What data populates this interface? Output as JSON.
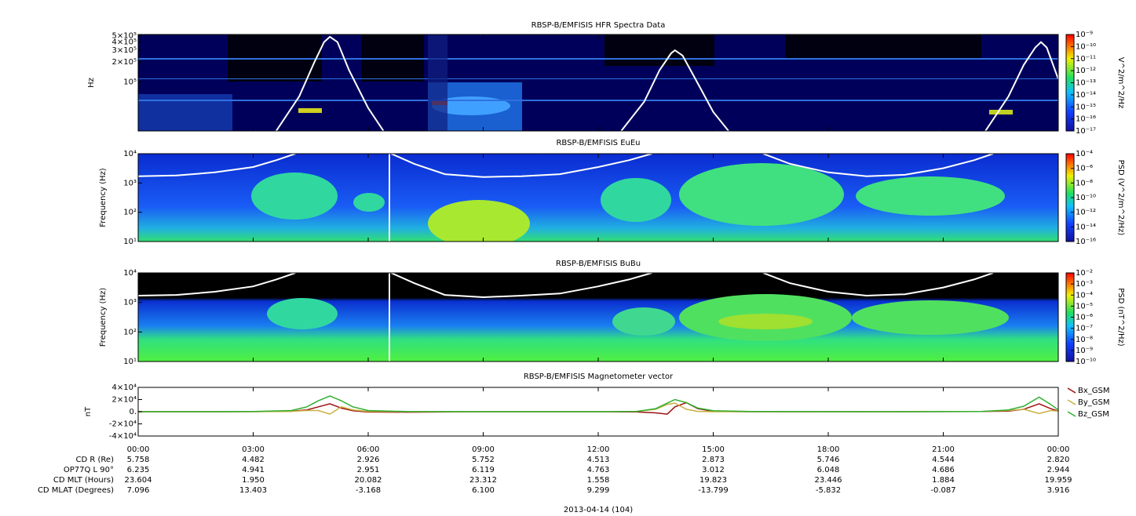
{
  "chart_data": [
    {
      "type": "spectrogram",
      "title": "RBSP-B/EMFISIS  HFR Spectra Data",
      "ylabel": "Hz",
      "ylog": true,
      "ylim": [
        18000,
        520000
      ],
      "yticks": [
        {
          "value": 100000,
          "label": "10⁵"
        },
        {
          "value": 200000,
          "label": "2×10⁵"
        },
        {
          "value": 300000,
          "label": "3×10⁵"
        },
        {
          "value": 400000,
          "label": "4×10⁵"
        },
        {
          "value": 500000,
          "label": "5×10⁵"
        }
      ],
      "zlabel": "V^2/m^2/Hz",
      "zlog": true,
      "zlim": [
        1e-17,
        1e-09
      ],
      "zticks": [
        {
          "value": 1e-17,
          "label": "10⁻¹⁷"
        },
        {
          "value": 1e-16,
          "label": "10⁻¹⁶"
        },
        {
          "value": 1e-15,
          "label": "10⁻¹⁵"
        },
        {
          "value": 1e-14,
          "label": "10⁻¹⁴"
        },
        {
          "value": 1e-13,
          "label": "10⁻¹³"
        },
        {
          "value": 1e-12,
          "label": "10⁻¹²"
        },
        {
          "value": 1e-11,
          "label": "10⁻¹¹"
        },
        {
          "value": 1e-10,
          "label": "10⁻¹⁰"
        },
        {
          "value": 1e-09,
          "label": "10⁻⁹"
        }
      ],
      "lines": [
        {
          "color": "#ffffff",
          "x": [
            3.6,
            4.2,
            4.6,
            4.85,
            5.0,
            5.2,
            5.5,
            6.0,
            6.4
          ],
          "values": [
            18000,
            60000,
            200000,
            400000,
            480000,
            400000,
            150000,
            40000,
            18000
          ]
        },
        {
          "color": "#ffffff",
          "x": [
            12.6,
            13.2,
            13.6,
            13.9,
            14.0,
            14.2,
            14.5,
            15.0,
            15.4
          ],
          "values": [
            18000,
            50000,
            150000,
            270000,
            300000,
            250000,
            120000,
            35000,
            18000
          ]
        },
        {
          "color": "#ffffff",
          "x": [
            22.1,
            22.7,
            23.1,
            23.4,
            23.55,
            23.7,
            24.0
          ],
          "values": [
            18000,
            60000,
            180000,
            330000,
            400000,
            330000,
            110000
          ]
        }
      ]
    },
    {
      "type": "spectrogram",
      "title": "RBSP-B/EMFISIS  EuEu",
      "ylabel": "Frequency (Hz)",
      "ylog": true,
      "ylim": [
        10,
        10000
      ],
      "yticks": [
        {
          "value": 10,
          "label": "10¹"
        },
        {
          "value": 100,
          "label": "10²"
        },
        {
          "value": 1000,
          "label": "10³"
        },
        {
          "value": 10000,
          "label": "10⁴"
        }
      ],
      "zlabel": "PSD (V^2/m^2/Hz)",
      "zlog": true,
      "zlim": [
        1e-16,
        0.0001
      ],
      "zticks": [
        {
          "value": 1e-16,
          "label": "10⁻¹⁶"
        },
        {
          "value": 1e-14,
          "label": "10⁻¹⁴"
        },
        {
          "value": 1e-12,
          "label": "10⁻¹²"
        },
        {
          "value": 1e-10,
          "label": "10⁻¹⁰"
        },
        {
          "value": 1e-08,
          "label": "10⁻⁸"
        },
        {
          "value": 1e-06,
          "label": "10⁻⁶"
        },
        {
          "value": 0.0001,
          "label": "10⁻⁴"
        }
      ],
      "lines": [
        {
          "color": "#ffffff",
          "x": [
            0,
            1,
            2,
            3,
            3.6,
            4.1,
            5,
            6.6,
            7.2,
            8,
            9,
            10,
            11,
            12,
            12.8,
            13.4,
            15,
            16.3,
            17,
            18,
            19,
            20,
            21,
            21.8,
            22.3
          ],
          "values": [
            1700,
            1800,
            2300,
            3500,
            6000,
            10000,
            null,
            10000,
            4500,
            2000,
            1600,
            1700,
            2000,
            3500,
            6000,
            10000,
            null,
            10000,
            4500,
            2300,
            1700,
            1900,
            3200,
            6000,
            10000
          ]
        }
      ]
    },
    {
      "type": "spectrogram",
      "title": "RBSP-B/EMFISIS  BuBu",
      "ylabel": "Frequency (Hz)",
      "ylog": true,
      "ylim": [
        10,
        10000
      ],
      "yticks": [
        {
          "value": 10,
          "label": "10¹"
        },
        {
          "value": 100,
          "label": "10²"
        },
        {
          "value": 1000,
          "label": "10³"
        },
        {
          "value": 10000,
          "label": "10⁴"
        }
      ],
      "zlabel": "PSD (nT^2/Hz)",
      "zlog": true,
      "zlim": [
        1e-10,
        0.01
      ],
      "zticks": [
        {
          "value": 1e-10,
          "label": "10⁻¹⁰"
        },
        {
          "value": 1e-09,
          "label": "10⁻⁹"
        },
        {
          "value": 1e-08,
          "label": "10⁻⁸"
        },
        {
          "value": 1e-07,
          "label": "10⁻⁷"
        },
        {
          "value": 1e-06,
          "label": "10⁻⁶"
        },
        {
          "value": 1e-05,
          "label": "10⁻⁵"
        },
        {
          "value": 0.0001,
          "label": "10⁻⁴"
        },
        {
          "value": 0.001,
          "label": "10⁻³"
        },
        {
          "value": 0.01,
          "label": "10⁻²"
        }
      ],
      "lines": [
        {
          "color": "#ffffff",
          "x": [
            0,
            1,
            2,
            3,
            3.6,
            4.1,
            5,
            6.6,
            7.2,
            8,
            9,
            10,
            11,
            12,
            12.8,
            13.4,
            15,
            16.3,
            17,
            18,
            19,
            20,
            21,
            21.8,
            22.3
          ],
          "values": [
            1700,
            1800,
            2300,
            3500,
            6000,
            10000,
            null,
            10000,
            4500,
            1800,
            1500,
            1700,
            2000,
            3500,
            6000,
            10000,
            null,
            10000,
            4500,
            2300,
            1700,
            1900,
            3200,
            6000,
            10000
          ]
        }
      ]
    },
    {
      "type": "line",
      "title": "RBSP-B/EMFISIS  Magnetometer vector",
      "ylabel": "nT",
      "ylim": [
        -40000,
        40000
      ],
      "yticks": [
        {
          "value": -40000,
          "label": "-4×10⁴"
        },
        {
          "value": -20000,
          "label": "-2×10⁴"
        },
        {
          "value": 0,
          "label": "0."
        },
        {
          "value": 20000,
          "label": "2×10⁴"
        },
        {
          "value": 40000,
          "label": "4×10⁴"
        }
      ],
      "x": [
        0,
        2,
        3,
        4,
        4.4,
        4.7,
        5,
        5.3,
        5.6,
        6,
        7,
        9,
        12,
        13,
        13.5,
        13.8,
        14,
        14.3,
        14.6,
        15,
        16,
        19,
        22,
        22.7,
        23.1,
        23.5,
        23.8,
        24
      ],
      "series": [
        {
          "name": "Bx_GSM",
          "color": "#a01010",
          "values": [
            0,
            0,
            100,
            800,
            3000,
            8000,
            13000,
            6000,
            1500,
            -500,
            -800,
            0,
            0,
            -300,
            -2000,
            -4000,
            8000,
            15000,
            5000,
            500,
            0,
            0,
            200,
            1000,
            4000,
            13000,
            5000,
            1000
          ]
        },
        {
          "name": "By_GSM",
          "color": "#c8b040",
          "values": [
            0,
            0,
            0,
            500,
            2000,
            2000,
            -4000,
            8000,
            3000,
            500,
            0,
            0,
            0,
            500,
            4000,
            12000,
            14000,
            4000,
            500,
            0,
            0,
            0,
            500,
            2000,
            4000,
            -3000,
            2000,
            1000
          ]
        },
        {
          "name": "Bz_GSM",
          "color": "#30b030",
          "values": [
            0,
            0,
            200,
            2000,
            8000,
            18000,
            26000,
            18000,
            8000,
            2000,
            300,
            0,
            0,
            500,
            5000,
            14000,
            20000,
            15000,
            6000,
            1500,
            200,
            0,
            300,
            3000,
            9000,
            24000,
            12000,
            3000
          ]
        }
      ]
    }
  ],
  "x_axis": {
    "xlim": [
      0,
      24
    ],
    "xlabel": "2013-04-14 (104)",
    "xticks": [
      {
        "value": 0,
        "label": "00:00"
      },
      {
        "value": 3,
        "label": "03:00"
      },
      {
        "value": 6,
        "label": "06:00"
      },
      {
        "value": 9,
        "label": "09:00"
      },
      {
        "value": 12,
        "label": "12:00"
      },
      {
        "value": 15,
        "label": "15:00"
      },
      {
        "value": 18,
        "label": "18:00"
      },
      {
        "value": 21,
        "label": "21:00"
      },
      {
        "value": 24,
        "label": "00:00"
      }
    ]
  },
  "ephemeris": {
    "labels": [
      "CD R (Re)",
      "OP77Q L 90°",
      "CD MLT (Hours)",
      "CD MLAT (Degrees)"
    ],
    "rows": [
      [
        "5.758",
        "4.482",
        "2.926",
        "5.752",
        "4.513",
        "2.873",
        "5.746",
        "4.544",
        "2.820"
      ],
      [
        "6.235",
        "4.941",
        "2.951",
        "6.119",
        "4.763",
        "3.012",
        "6.048",
        "4.686",
        "2.944"
      ],
      [
        "23.604",
        "1.950",
        "20.082",
        "23.312",
        "1.558",
        "19.823",
        "23.446",
        "1.884",
        "19.959"
      ],
      [
        "7.096",
        "13.403",
        "-3.168",
        "6.100",
        "9.299",
        "-13.799",
        "-5.832",
        "-0.087",
        "3.916"
      ]
    ]
  }
}
